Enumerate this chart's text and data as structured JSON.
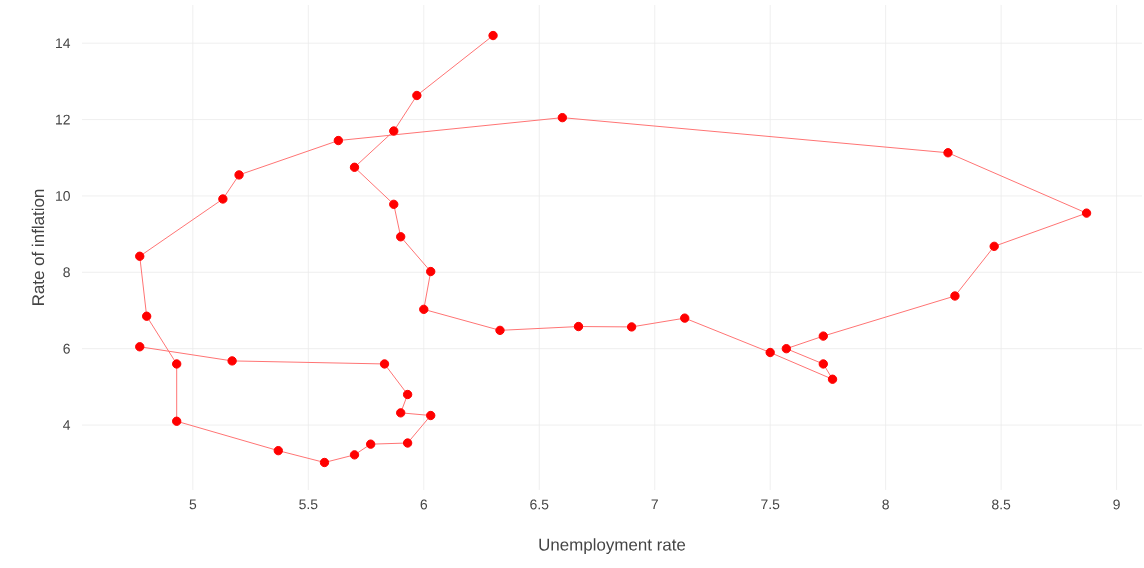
{
  "chart_data": {
    "type": "line",
    "xlabel": "Unemployment rate",
    "ylabel": "Rate of inflation",
    "marker": "circle",
    "grid": true,
    "xlim": [
      4.52,
      9.11
    ],
    "ylim": [
      2.3,
      15.0
    ],
    "xticks": [
      5,
      5.5,
      6,
      6.5,
      7,
      7.5,
      8,
      8.5,
      9
    ],
    "yticks": [
      4,
      6,
      8,
      10,
      12,
      14
    ],
    "series": [
      {
        "color": "#ff0000",
        "x": [
          6.3,
          5.97,
          5.87,
          5.7,
          5.87,
          5.9,
          6.03,
          6.0,
          6.33,
          6.67,
          6.9,
          7.13,
          7.5,
          7.77,
          7.73,
          7.57,
          7.73,
          8.3,
          8.47,
          8.87,
          8.27,
          6.6,
          5.63,
          5.2,
          5.13,
          4.77,
          4.8,
          4.93,
          4.93,
          5.37,
          5.57,
          5.7,
          5.77,
          5.93,
          6.03,
          5.9,
          5.93,
          5.83,
          5.17,
          4.77
        ],
        "values": [
          14.2,
          12.63,
          11.7,
          10.75,
          9.78,
          8.93,
          8.02,
          7.03,
          6.48,
          6.58,
          6.57,
          6.8,
          5.9,
          5.2,
          5.6,
          6.0,
          6.33,
          7.38,
          8.68,
          9.55,
          11.13,
          12.05,
          11.45,
          10.55,
          9.92,
          8.42,
          6.85,
          5.6,
          4.1,
          3.33,
          3.02,
          3.22,
          3.5,
          3.53,
          4.25,
          4.32,
          4.8,
          5.6,
          5.68,
          6.05
        ]
      }
    ]
  }
}
